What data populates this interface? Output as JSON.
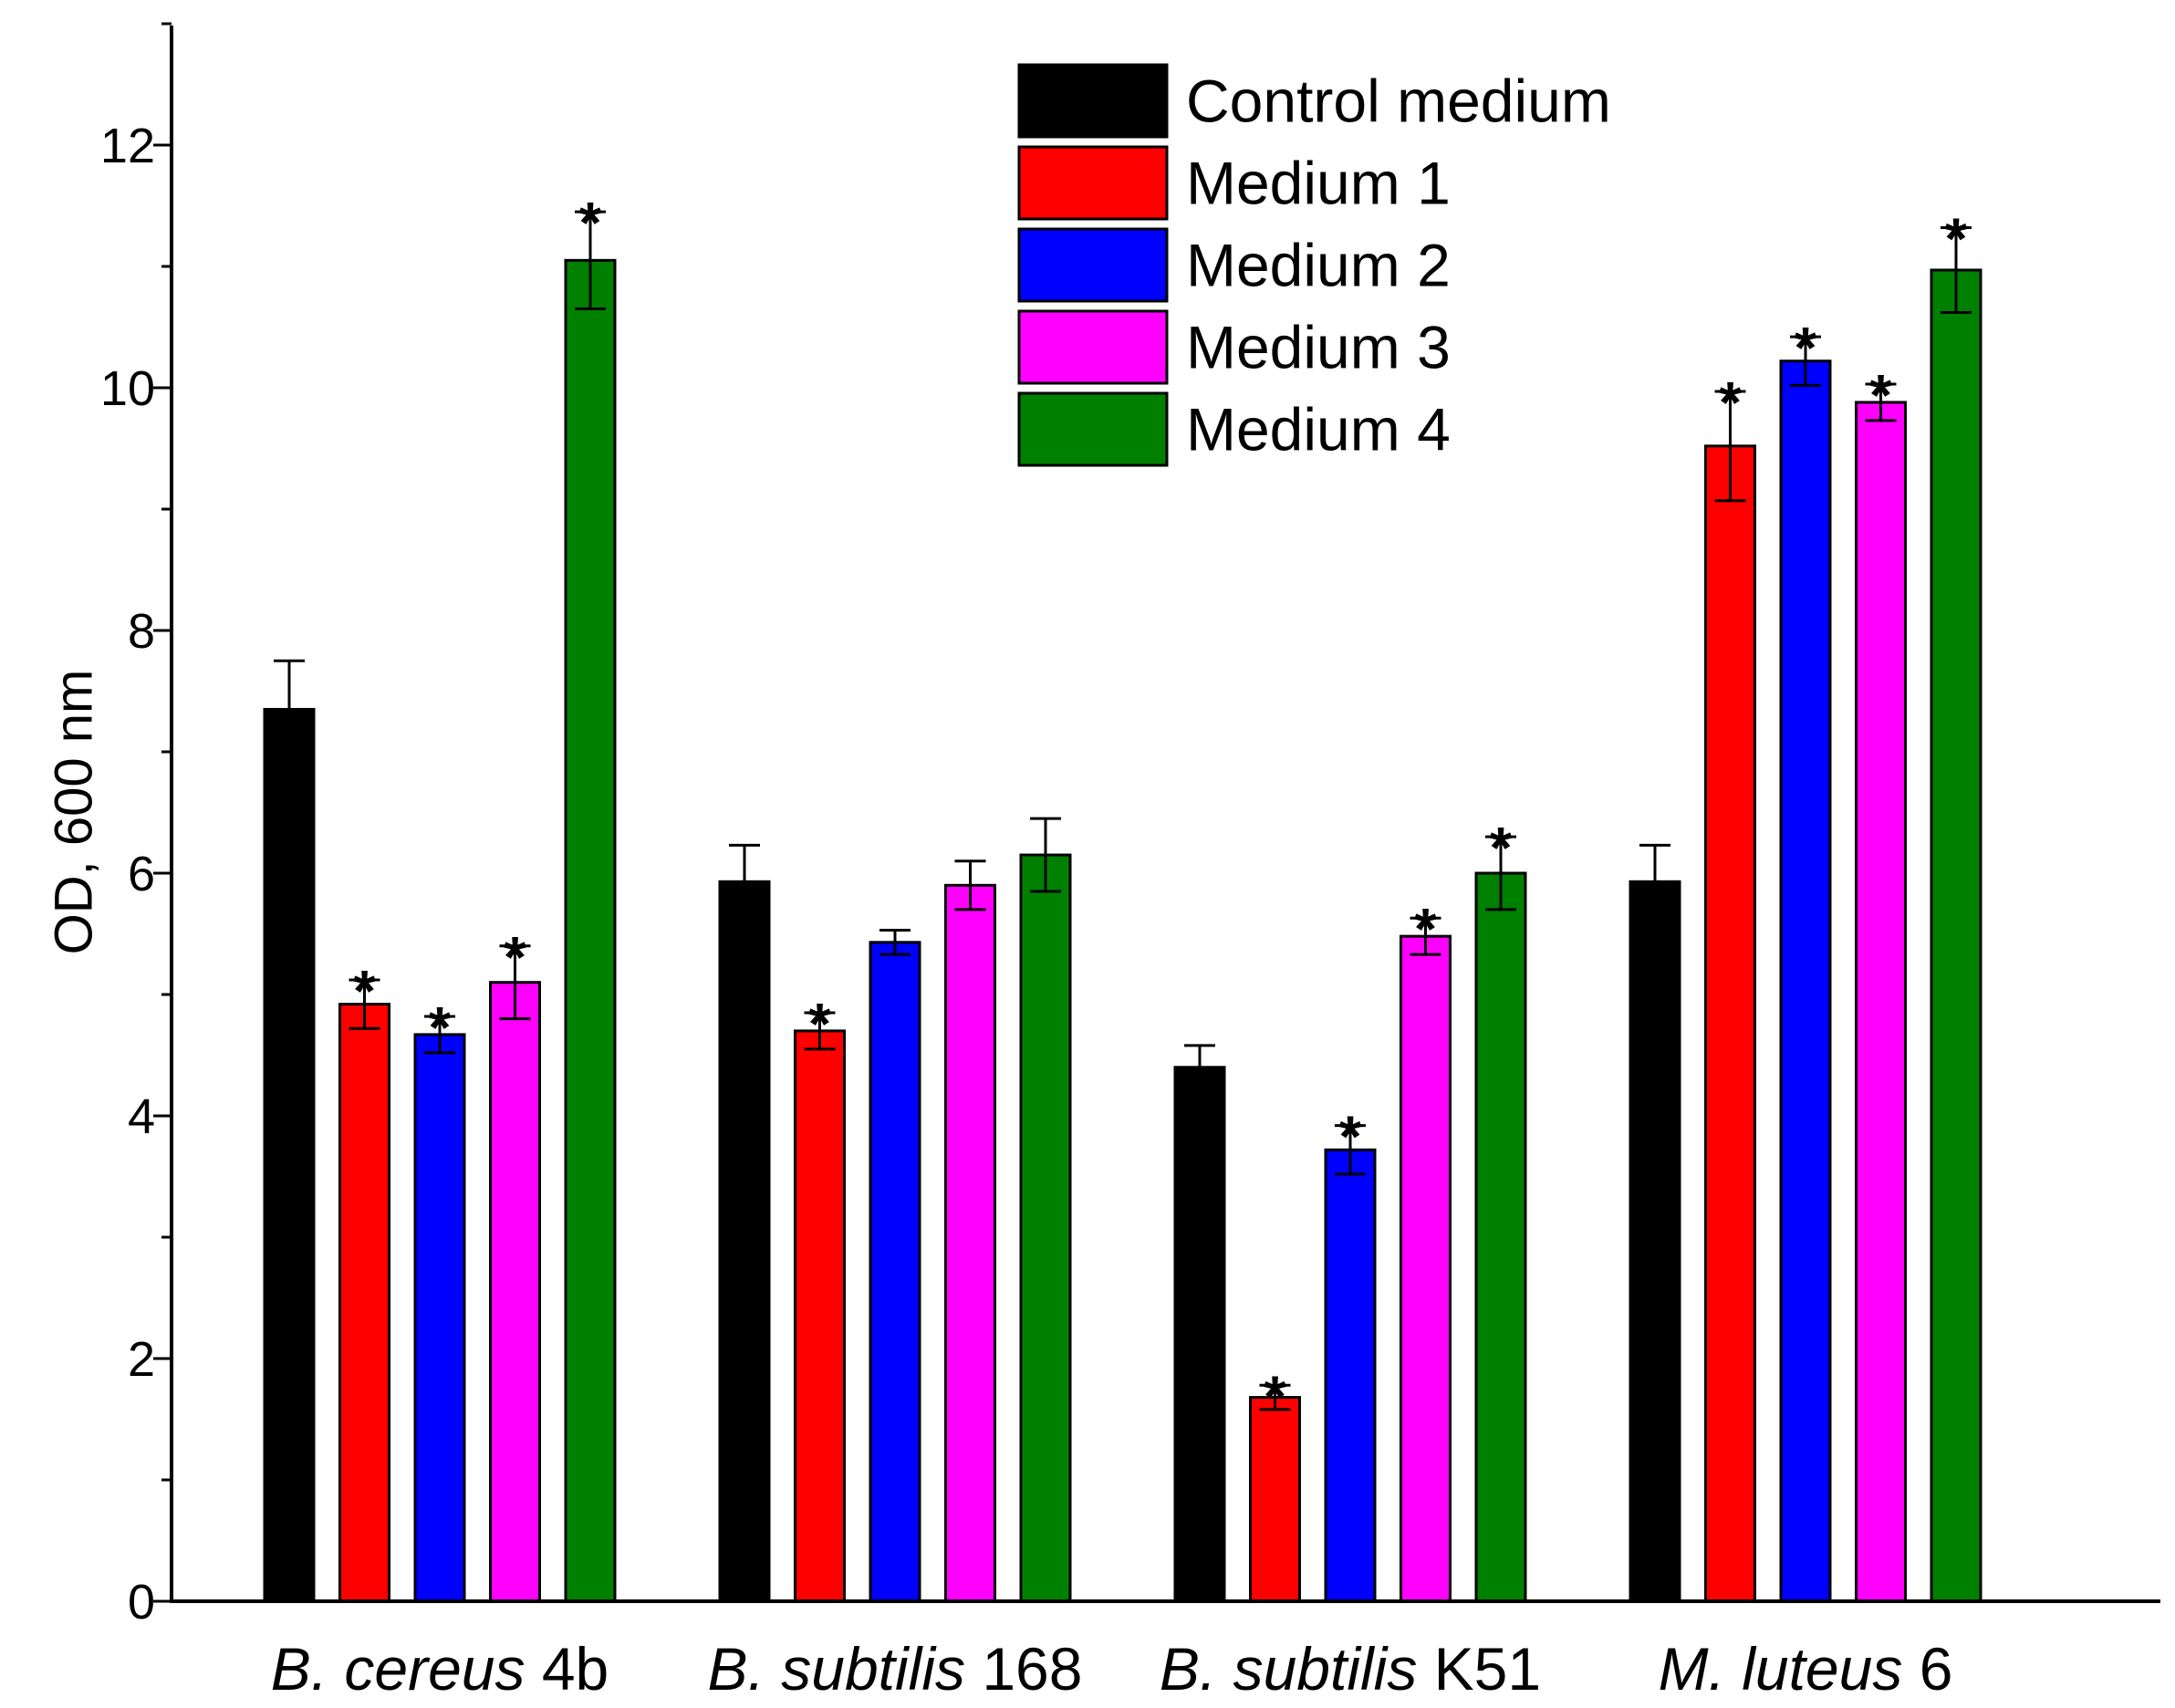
{
  "chart_data": {
    "type": "bar",
    "title": "",
    "xlabel": "",
    "ylabel": "OD, 600 nm",
    "ylim": [
      0,
      13
    ],
    "yticks": [
      0,
      2,
      4,
      6,
      8,
      10,
      12
    ],
    "legend_position": "top-center",
    "significance_marker": "*",
    "categories": [
      {
        "italic": "B. cereus",
        "suffix": " 4b"
      },
      {
        "italic": "B. subtilis",
        "suffix": " 168"
      },
      {
        "italic": "B. subtilis",
        "suffix": " K51"
      },
      {
        "italic": "M. luteus",
        "suffix": " 6"
      }
    ],
    "series": [
      {
        "name": "Control medium",
        "color": "#000000",
        "values": [
          7.35,
          5.93,
          4.4,
          5.93
        ],
        "errors": [
          0.4,
          0.3,
          0.18,
          0.3
        ],
        "significant": [
          false,
          false,
          false,
          false
        ]
      },
      {
        "name": "Medium 1",
        "color": "#ff0000",
        "values": [
          4.92,
          4.7,
          1.68,
          9.52
        ],
        "errors": [
          0.2,
          0.15,
          0.1,
          0.45
        ],
        "significant": [
          true,
          true,
          true,
          true
        ]
      },
      {
        "name": "Medium 2",
        "color": "#0000ff",
        "values": [
          4.67,
          5.43,
          3.72,
          10.22
        ],
        "errors": [
          0.15,
          0.1,
          0.2,
          0.2
        ],
        "significant": [
          true,
          false,
          true,
          true
        ]
      },
      {
        "name": "Medium 3",
        "color": "#ff00ff",
        "values": [
          5.1,
          5.9,
          5.48,
          9.88
        ],
        "errors": [
          0.3,
          0.2,
          0.15,
          0.15
        ],
        "significant": [
          true,
          false,
          true,
          true
        ]
      },
      {
        "name": "Medium 4",
        "color": "#008000",
        "values": [
          11.05,
          6.15,
          6.0,
          10.97
        ],
        "errors": [
          0.4,
          0.3,
          0.3,
          0.35
        ],
        "significant": [
          true,
          false,
          true,
          true
        ]
      }
    ]
  }
}
